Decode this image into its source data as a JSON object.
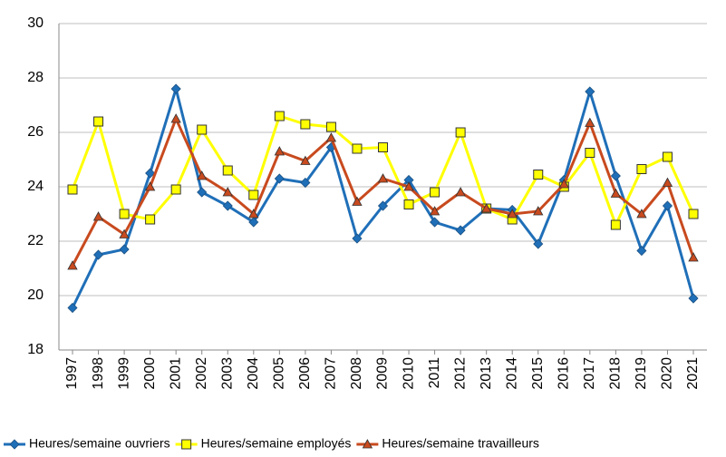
{
  "chart_data": {
    "type": "line",
    "categories": [
      "1997",
      "1998",
      "1999",
      "2000",
      "2001",
      "2002",
      "2003",
      "2004",
      "2005",
      "2006",
      "2007",
      "2008",
      "2009",
      "2010",
      "2011",
      "2012",
      "2013",
      "2014",
      "2015",
      "2016",
      "2017",
      "2018",
      "2019",
      "2020",
      "2021"
    ],
    "series": [
      {
        "name": "Heures/semaine ouvriers",
        "color": "#1f6fb8",
        "marker": "diamond",
        "values": [
          19.55,
          21.5,
          21.7,
          24.5,
          27.6,
          23.8,
          23.3,
          22.7,
          24.3,
          24.15,
          25.45,
          22.1,
          23.3,
          24.25,
          22.7,
          22.4,
          23.2,
          23.15,
          21.9,
          24.25,
          27.5,
          24.4,
          21.65,
          23.3,
          19.9
        ]
      },
      {
        "name": "Heures/semaine employés",
        "color": "#ffff00",
        "marker": "square",
        "values": [
          23.9,
          26.4,
          23,
          22.8,
          23.9,
          26.1,
          24.6,
          23.7,
          26.6,
          26.3,
          26.2,
          25.4,
          25.45,
          23.35,
          23.8,
          26,
          23.2,
          22.8,
          24.45,
          24,
          25.25,
          22.6,
          24.65,
          25.1,
          23
        ]
      },
      {
        "name": "Heures/semaine travailleurs",
        "color": "#c84a1e",
        "marker": "triangle",
        "values": [
          21.1,
          22.9,
          22.25,
          24,
          26.5,
          24.4,
          23.8,
          23,
          25.3,
          24.95,
          25.8,
          23.45,
          24.3,
          24,
          23.1,
          23.8,
          23.2,
          23,
          23.1,
          24.1,
          26.35,
          23.75,
          23,
          24.15,
          21.4
        ]
      }
    ],
    "ylim": [
      18,
      30
    ],
    "yticks": [
      18,
      20,
      22,
      24,
      26,
      28,
      30
    ],
    "grid": true
  }
}
